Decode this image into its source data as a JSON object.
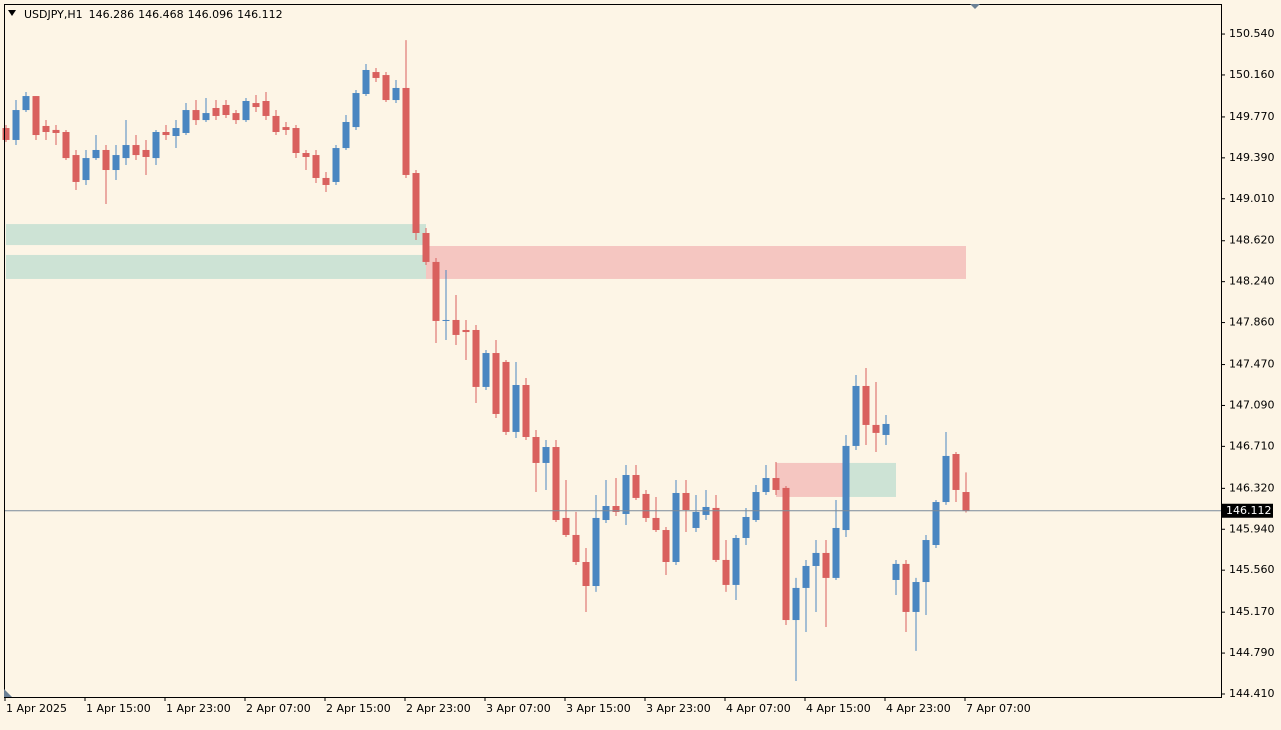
{
  "chart_data": {
    "type": "candlestick",
    "symbol": "USDJPY,H1",
    "categories": [
      "1 Apr 2025",
      null,
      null,
      null,
      null,
      null,
      null,
      null,
      "1 Apr 15:00",
      null,
      null,
      null,
      null,
      null,
      null,
      null,
      "1 Apr 23:00",
      null,
      null,
      null,
      null,
      null,
      null,
      null,
      "2 Apr 07:00",
      null,
      null,
      null,
      null,
      null,
      null,
      null,
      "2 Apr 15:00",
      null,
      null,
      null,
      null,
      null,
      null,
      null,
      "2 Apr 23:00",
      null,
      null,
      null,
      null,
      null,
      null,
      null,
      "3 Apr 07:00",
      null,
      null,
      null,
      null,
      null,
      null,
      null,
      "3 Apr 15:00",
      null,
      null,
      null,
      null,
      null,
      null,
      null,
      "3 Apr 23:00",
      null,
      null,
      null,
      null,
      null,
      null,
      null,
      "4 Apr 07:00",
      null,
      null,
      null,
      null,
      null,
      null,
      null,
      "4 Apr 15:00",
      null,
      null,
      null,
      null,
      null,
      null,
      null,
      "4 Apr 23:00",
      null,
      null,
      null,
      null,
      null,
      null,
      null,
      "7 Apr 07:00"
    ],
    "open": [
      149.667,
      149.556,
      149.834,
      149.964,
      149.686,
      149.649,
      149.63,
      149.416,
      149.184,
      149.388,
      149.463,
      149.277,
      149.388,
      149.509,
      149.463,
      149.388,
      149.63,
      149.593,
      149.621,
      149.834,
      149.741,
      149.853,
      149.881,
      149.806,
      149.741,
      149.899,
      149.918,
      149.779,
      149.676,
      149.667,
      149.435,
      149.416,
      149.203,
      149.166,
      149.481,
      149.676,
      149.983,
      150.187,
      150.159,
      149.927,
      150.039,
      149.249,
      148.692,
      148.423,
      147.875,
      147.884,
      147.791,
      147.791,
      147.262,
      147.577,
      147.494,
      146.844,
      147.28,
      146.797,
      146.556,
      146.704,
      146.045,
      145.887,
      145.636,
      145.413,
      146.026,
      146.156,
      146.082,
      146.444,
      146.268,
      146.045,
      145.933,
      145.636,
      146.277,
      145.952,
      146.073,
      146.138,
      145.655,
      145.423,
      145.859,
      146.026,
      146.286,
      146.416,
      146.324,
      145.097,
      145.395,
      145.599,
      145.72,
      145.488,
      145.933,
      146.714,
      147.271,
      146.909,
      146.816,
      145.469,
      145.618,
      145.172,
      145.45,
      145.794,
      146.193,
      146.639,
      146.286
    ],
    "high": [
      149.695,
      149.927,
      150.002,
      149.964,
      149.741,
      149.695,
      149.649,
      149.463,
      149.463,
      149.602,
      149.509,
      149.509,
      149.741,
      149.602,
      149.556,
      149.649,
      149.695,
      149.741,
      149.899,
      149.927,
      149.946,
      149.927,
      149.927,
      149.834,
      149.946,
      149.974,
      150.002,
      149.834,
      149.723,
      149.695,
      149.463,
      149.463,
      149.258,
      149.509,
      149.788,
      150.02,
      150.262,
      150.224,
      150.187,
      150.113,
      150.484,
      149.277,
      148.738,
      148.46,
      148.348,
      148.116,
      147.884,
      147.837,
      147.605,
      147.698,
      147.512,
      147.494,
      147.345,
      146.862,
      146.769,
      146.769,
      146.398,
      146.101,
      145.766,
      146.258,
      146.398,
      146.416,
      146.537,
      146.537,
      146.305,
      146.24,
      145.961,
      146.398,
      146.398,
      146.258,
      146.305,
      146.258,
      145.84,
      145.887,
      146.138,
      146.351,
      146.537,
      146.565,
      146.342,
      145.488,
      145.655,
      145.84,
      145.84,
      146.212,
      146.816,
      147.373,
      147.438,
      147.308,
      147.001,
      145.655,
      145.655,
      145.488,
      145.887,
      146.212,
      146.844,
      146.658,
      146.468
    ],
    "low": [
      149.537,
      149.509,
      149.816,
      149.556,
      149.556,
      149.509,
      149.37,
      149.091,
      149.138,
      149.37,
      148.961,
      149.184,
      149.323,
      149.37,
      149.231,
      149.323,
      149.556,
      149.481,
      149.602,
      149.695,
      149.723,
      149.741,
      149.76,
      149.704,
      149.723,
      149.816,
      149.741,
      149.602,
      149.602,
      149.388,
      149.277,
      149.156,
      149.073,
      149.138,
      149.463,
      149.649,
      149.964,
      150.094,
      149.909,
      149.899,
      149.203,
      148.627,
      148.395,
      147.67,
      147.698,
      147.652,
      147.512,
      147.113,
      147.234,
      146.974,
      146.816,
      146.788,
      146.769,
      146.286,
      146.305,
      146.008,
      145.868,
      145.608,
      145.172,
      145.358,
      145.998,
      146.063,
      145.98,
      146.212,
      146.008,
      145.915,
      145.515,
      145.608,
      145.915,
      145.915,
      146.026,
      145.636,
      145.358,
      145.283,
      145.794,
      146.008,
      146.258,
      146.258,
      145.051,
      144.531,
      144.986,
      145.172,
      145.032,
      145.469,
      145.868,
      146.676,
      146.723,
      146.658,
      146.723,
      145.33,
      144.986,
      144.81,
      145.144,
      145.766,
      146.166,
      146.193,
      146.096
    ],
    "close": [
      149.556,
      149.834,
      149.964,
      149.602,
      149.63,
      149.621,
      149.388,
      149.166,
      149.388,
      149.463,
      149.277,
      149.416,
      149.509,
      149.416,
      149.398,
      149.63,
      149.602,
      149.667,
      149.834,
      149.741,
      149.806,
      149.779,
      149.788,
      149.741,
      149.918,
      149.862,
      149.779,
      149.63,
      149.649,
      149.435,
      149.398,
      149.203,
      149.138,
      149.481,
      149.723,
      149.992,
      150.206,
      150.132,
      149.927,
      150.039,
      149.231,
      148.692,
      148.423,
      147.875,
      147.884,
      147.745,
      147.772,
      147.262,
      147.577,
      147.011,
      146.844,
      147.28,
      146.797,
      146.556,
      146.704,
      146.026,
      145.887,
      145.636,
      145.413,
      146.045,
      146.156,
      146.101,
      146.444,
      146.231,
      146.045,
      145.933,
      145.636,
      146.277,
      146.119,
      146.101,
      146.147,
      145.655,
      145.423,
      145.859,
      146.054,
      146.286,
      146.416,
      146.305,
      145.097,
      145.395,
      145.599,
      145.72,
      145.488,
      145.952,
      146.714,
      147.271,
      146.909,
      146.835,
      146.918,
      145.618,
      145.172,
      145.45,
      145.84,
      146.193,
      146.621,
      146.305,
      146.112
    ],
    "up_color": "#4a86c1",
    "down_color": "#d9605e",
    "ylim": [
      144.382,
      150.819
    ],
    "yticks": [
      {
        "value": 150.54,
        "label": "150.540"
      },
      {
        "value": 150.16,
        "label": "150.160"
      },
      {
        "value": 149.77,
        "label": "149.770"
      },
      {
        "value": 149.39,
        "label": "149.390"
      },
      {
        "value": 149.01,
        "label": "149.010"
      },
      {
        "value": 148.62,
        "label": "148.620"
      },
      {
        "value": 148.24,
        "label": "148.240"
      },
      {
        "value": 147.86,
        "label": "147.860"
      },
      {
        "value": 147.47,
        "label": "147.470"
      },
      {
        "value": 147.09,
        "label": "147.090"
      },
      {
        "value": 146.71,
        "label": "146.710"
      },
      {
        "value": 146.32,
        "label": "146.320"
      },
      {
        "value": 145.94,
        "label": "145.940"
      },
      {
        "value": 145.56,
        "label": "145.560"
      },
      {
        "value": 145.17,
        "label": "145.170"
      },
      {
        "value": 144.79,
        "label": "144.790"
      },
      {
        "value": 144.41,
        "label": "144.410"
      }
    ],
    "grid": false,
    "zones": [
      {
        "color": "#cde3d5",
        "start": 0,
        "end": 42,
        "top": 148.775,
        "bottom": 148.58
      },
      {
        "color": "#cde3d5",
        "start": 0,
        "end": 42,
        "top": 148.488,
        "bottom": 148.265
      },
      {
        "color": "#f5c6c1",
        "start": 42,
        "end": 96,
        "top": 148.571,
        "bottom": 148.265
      },
      {
        "color": "#f5c6c1",
        "start": 77,
        "end": 84,
        "top": 146.556,
        "bottom": 146.24
      },
      {
        "color": "#cde3d5",
        "start": 84,
        "end": 89,
        "top": 146.556,
        "bottom": 146.24
      }
    ]
  }
}
